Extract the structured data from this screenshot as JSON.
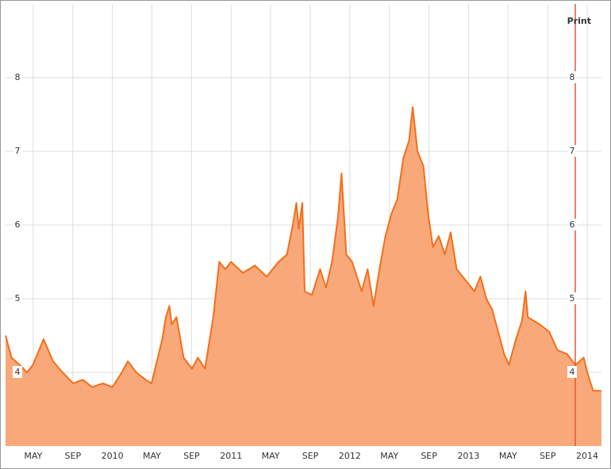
{
  "toolbar": {
    "print": "Print"
  },
  "chart_data": {
    "type": "area",
    "x": [
      2009.1,
      2009.15,
      2009.22,
      2009.28,
      2009.33,
      2009.42,
      2009.5,
      2009.58,
      2009.67,
      2009.75,
      2009.83,
      2009.92,
      2010.0,
      2010.08,
      2010.13,
      2010.2,
      2010.28,
      2010.33,
      2010.42,
      2010.45,
      2010.48,
      2010.5,
      2010.54,
      2010.6,
      2010.67,
      2010.72,
      2010.78,
      2010.85,
      2010.9,
      2010.95,
      2011.0,
      2011.1,
      2011.2,
      2011.3,
      2011.4,
      2011.47,
      2011.52,
      2011.55,
      2011.57,
      2011.6,
      2011.62,
      2011.68,
      2011.75,
      2011.8,
      2011.85,
      2011.9,
      2011.93,
      2011.97,
      2012.02,
      2012.05,
      2012.1,
      2012.15,
      2012.2,
      2012.25,
      2012.3,
      2012.35,
      2012.4,
      2012.45,
      2012.5,
      2012.53,
      2012.57,
      2012.62,
      2012.66,
      2012.7,
      2012.75,
      2012.8,
      2012.85,
      2012.9,
      2012.95,
      2013.05,
      2013.1,
      2013.15,
      2013.2,
      2013.25,
      2013.3,
      2013.34,
      2013.4,
      2013.45,
      2013.48,
      2013.5,
      2013.6,
      2013.68,
      2013.75,
      2013.83,
      2013.9,
      2013.97,
      2014.0,
      2014.05,
      2014.12
    ],
    "series": [
      {
        "fill": "#f9a87a",
        "color": "#f26f1a",
        "values": [
          4.5,
          4.2,
          4.1,
          4.0,
          4.1,
          4.45,
          4.15,
          4.0,
          3.85,
          3.9,
          3.8,
          3.85,
          3.8,
          4.0,
          4.15,
          4.0,
          3.9,
          3.85,
          4.45,
          4.75,
          4.9,
          4.65,
          4.75,
          4.2,
          4.05,
          4.2,
          4.05,
          4.75,
          5.5,
          5.4,
          5.5,
          5.35,
          5.45,
          5.3,
          5.5,
          5.6,
          6.0,
          6.3,
          5.95,
          6.3,
          5.1,
          5.05,
          5.4,
          5.15,
          5.5,
          6.1,
          6.7,
          5.6,
          5.5,
          5.35,
          5.1,
          5.4,
          4.9,
          5.4,
          5.85,
          6.15,
          6.35,
          6.9,
          7.15,
          7.6,
          7.0,
          6.8,
          6.15,
          5.7,
          5.85,
          5.6,
          5.9,
          5.4,
          5.3,
          5.1,
          5.3,
          5.0,
          4.85,
          4.55,
          4.25,
          4.1,
          4.45,
          4.7,
          5.1,
          4.75,
          4.65,
          4.55,
          4.3,
          4.25,
          4.1,
          4.2,
          4.0,
          3.75,
          3.75
        ]
      }
    ],
    "xlim": [
      2009.1,
      2014.12
    ],
    "xticks": [
      {
        "value": 2009.333,
        "label": "MAY"
      },
      {
        "value": 2009.667,
        "label": "SEP"
      },
      2010,
      {
        "value": 2010.333,
        "label": "MAY"
      },
      {
        "value": 2010.667,
        "label": "SEP"
      },
      2011,
      {
        "value": 2011.333,
        "label": "MAY"
      },
      {
        "value": 2011.667,
        "label": "SEP"
      },
      2012,
      {
        "value": 2012.333,
        "label": "MAY"
      },
      {
        "value": 2012.667,
        "label": "SEP"
      },
      2013,
      {
        "value": 2013.333,
        "label": "MAY"
      },
      {
        "value": 2013.667,
        "label": "SEP"
      },
      2014
    ],
    "ylim": [
      3,
      9
    ],
    "yticks": [
      4,
      5,
      6,
      7,
      8
    ],
    "grid": true
  }
}
